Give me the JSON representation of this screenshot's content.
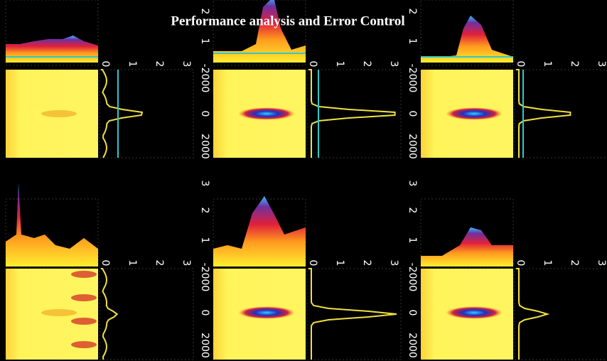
{
  "title": "Performance analysis and Error Control",
  "surface_ticks": [
    1,
    2,
    3
  ],
  "marginal_ticks": [
    0,
    1,
    2,
    3
  ],
  "heatmap_ticks": [
    -2000,
    0,
    2000
  ]
}
